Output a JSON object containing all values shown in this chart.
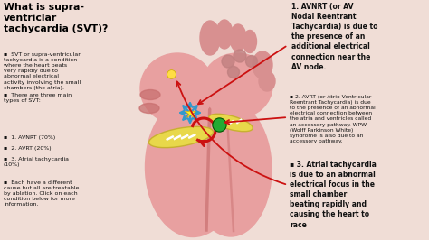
{
  "bg_color": "#f0ddd6",
  "title_left": "What is supra-\nventriclar\ntachycardia (SVT)?",
  "bullets_left": [
    "SVT or supra-ventricular\ntachycardia is a condition\nwhere the heart beats\nvery rapidly due to\nabnormal electrical\nactivity involving the small\nchambers (the atria).",
    "There are three main\ntypes of SVT:",
    "1. AVNRT (70%)",
    "2. AVRT (20%)",
    "3. Atrial tachycardia\n(10%)",
    "Each have a different\ncause but all are treatable\nby ablation. Click on each\ncondition below for more\ninformation."
  ],
  "right1_bold": "1. AVNRT (or AV\nNodal Reentrant\nTachycardia) is due to\nthe presence of an\nadditional electrical\nconnection near the\nAV node.",
  "right2_small": "2. AVRT (or Atrio-Ventricular\nReentrant Tachycardia) is due\nto the presence of an abnormal\nelectrical connection between\nthe atria and ventricles called\nan accessory pathway. WPW\n(Wolff Parkinson White)\nsyndrome is also due to an\naccessory pathway.",
  "right3_bold": "3. Atrial tachycardia\nis due to an abnormal\nelectrical focus in the\nsmall chamber\nbeating rapidly and\ncausing the heart to\nrace",
  "heart_fill": "#e8a0a0",
  "heart_dark": "#c97070",
  "heart_darker": "#b85a5a",
  "atrium_fill": "#e8a8a8",
  "vessel_fill": "#d89090",
  "shadow_color": "#c08080",
  "arrow_red": "#cc1111",
  "arrow_blue": "#3399cc",
  "star_color": "#ffee22",
  "dot_yellow": "#ffdd44",
  "pathway_yellow": "#e8d84a",
  "pathway_outline": "#c8b030",
  "green_node": "#22aa33",
  "text_dark": "#111111",
  "bullet_char": "▪"
}
